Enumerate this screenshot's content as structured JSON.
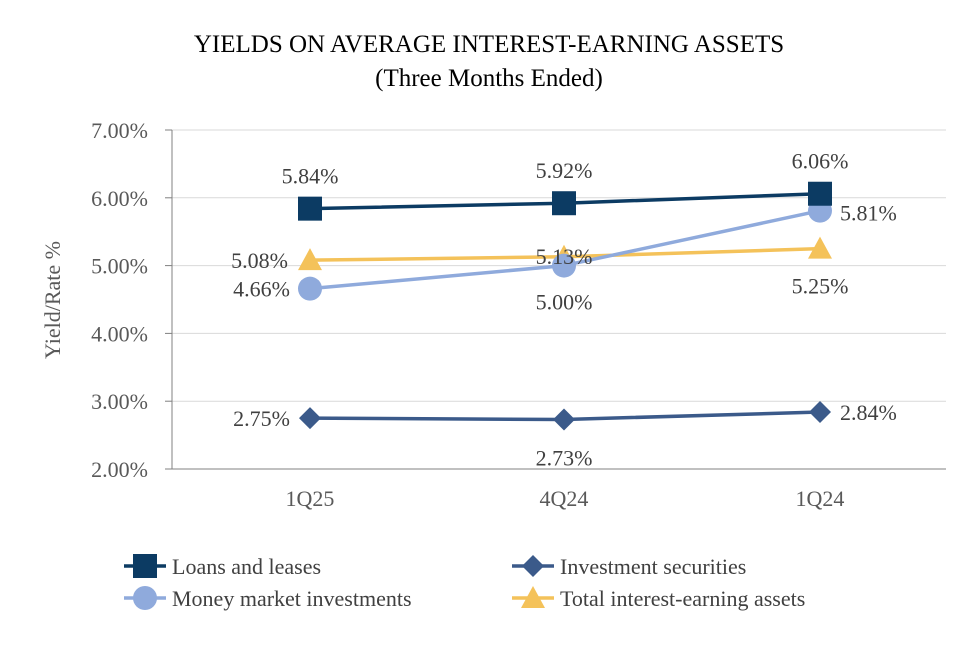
{
  "chart_data": {
    "type": "line",
    "title": "YIELDS ON AVERAGE INTEREST-EARNING ASSETS",
    "subtitle": "(Three Months Ended)",
    "xlabel": "",
    "ylabel": "Yield/Rate %",
    "categories": [
      "1Q25",
      "4Q24",
      "1Q24"
    ],
    "ylim": [
      2.0,
      7.0
    ],
    "yticks": [
      "2.00%",
      "3.00%",
      "4.00%",
      "5.00%",
      "6.00%",
      "7.00%"
    ],
    "grid": true,
    "legend_position": "bottom",
    "series": [
      {
        "key": "loans",
        "name": "Loans and leases",
        "values": [
          5.84,
          5.92,
          6.06
        ],
        "labels": [
          "5.84%",
          "5.92%",
          "6.06%"
        ],
        "color": "#0c3b63",
        "marker": "square"
      },
      {
        "key": "securities",
        "name": "Investment securities",
        "values": [
          2.75,
          2.73,
          2.84
        ],
        "labels": [
          "2.75%",
          "2.73%",
          "2.84%"
        ],
        "color": "#3b5a8a",
        "marker": "diamond"
      },
      {
        "key": "money-market",
        "name": "Money market investments",
        "values": [
          4.66,
          5.0,
          5.81
        ],
        "labels": [
          "4.66%",
          "5.00%",
          "5.81%"
        ],
        "color": "#8faadc",
        "marker": "circle"
      },
      {
        "key": "total",
        "name": "Total interest-earning assets",
        "values": [
          5.08,
          5.13,
          5.25
        ],
        "labels": [
          "5.08%",
          "5.13%",
          "5.25%"
        ],
        "color": "#f4c25a",
        "marker": "triangle"
      }
    ]
  }
}
